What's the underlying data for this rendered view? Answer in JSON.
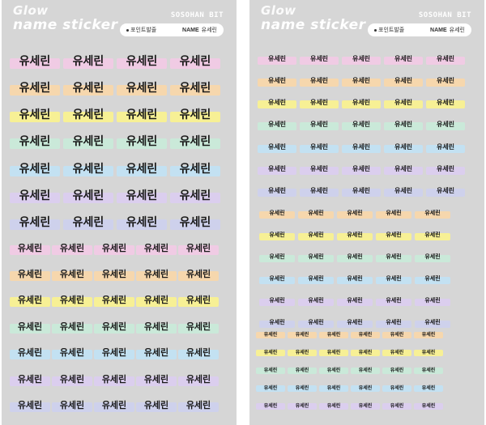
{
  "colors": {
    "sheet_bg": "#d6d6d6",
    "tapes": [
      "#f4c9e6",
      "#fbd7a6",
      "#fdf58a",
      "#c8ecd9",
      "#bfe3f7",
      "#dccdf2",
      "#cdd0f0"
    ]
  },
  "sheets": [
    {
      "brand_line1": "Glow",
      "brand_line2": "name sticker",
      "maker": "SOSOHAN BIT",
      "info_point": "포인트발줄",
      "info_name_key": "NAME",
      "info_name_value": "유세린"
    },
    {
      "brand_line1": "Glow",
      "brand_line2": "name sticker",
      "maker": "SOSOHAN BIT",
      "info_point": "포인트발줄",
      "info_name_key": "NAME",
      "info_name_value": "유세린"
    }
  ],
  "sticker_text": "유세린"
}
